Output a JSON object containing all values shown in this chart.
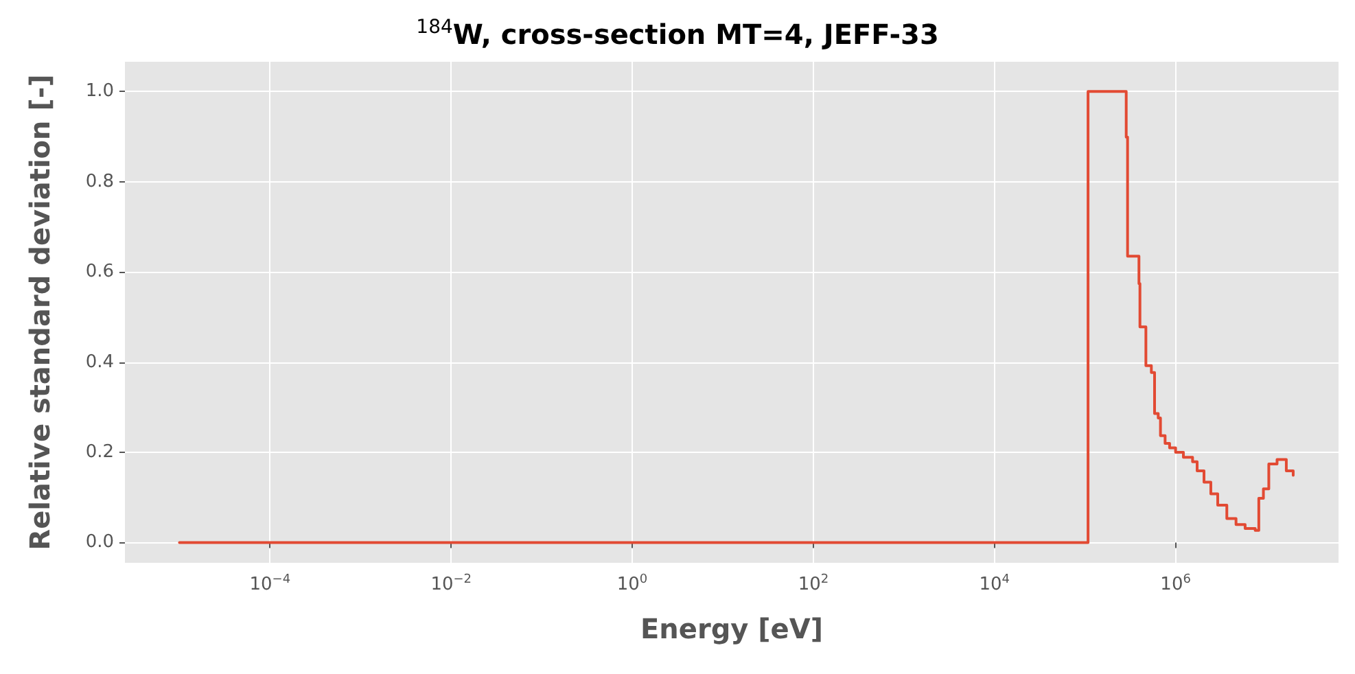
{
  "chart_data": {
    "type": "step",
    "title": "$^{184}$W, cross-section MT=4, JEFF-33",
    "xlabel": "Energy [eV]",
    "ylabel": "Relative standard deviation [-]",
    "log": "x",
    "grid": true,
    "marker": "none",
    "line_style": "solid",
    "xlim": [
      2.5e-06,
      63000000.0
    ],
    "xticks": [
      {
        "value": 0.0001,
        "label": "10$^{−4}$"
      },
      {
        "value": 0.01,
        "label": "10$^{−2}$"
      },
      {
        "value": 1,
        "label": "10$^{0}$"
      },
      {
        "value": 100,
        "label": "10$^{2}$"
      },
      {
        "value": 10000,
        "label": "10$^{4}$"
      },
      {
        "value": 1000000,
        "label": "10$^{6}$"
      }
    ],
    "ylim": [
      -0.045,
      1.066
    ],
    "yticks": [
      {
        "value": 0,
        "label": "0.0"
      },
      {
        "value": 0.2,
        "label": "0.2"
      },
      {
        "value": 0.4,
        "label": "0.4"
      },
      {
        "value": 0.6,
        "label": "0.6"
      },
      {
        "value": 0.8,
        "label": "0.8"
      },
      {
        "value": 1,
        "label": "1.0"
      }
    ],
    "series": [
      {
        "color": "#e24a33",
        "x": [
          1e-05,
          108000,
          285000,
          295000,
          394000,
          404000,
          470000,
          540000,
          586000,
          643000,
          681000,
          766000,
          859000,
          1000000,
          1220000,
          1540000,
          1730000,
          2060000,
          2450000,
          2920000,
          3680000,
          4650000,
          5860000,
          7570000,
          8300000,
          9330000,
          10700000,
          13200000,
          16700000,
          19900000
        ],
        "values": [
          0,
          1.0,
          0.899,
          0.635,
          0.574,
          0.478,
          0.392,
          0.377,
          0.286,
          0.276,
          0.237,
          0.22,
          0.21,
          0.2,
          0.189,
          0.179,
          0.159,
          0.134,
          0.108,
          0.083,
          0.053,
          0.04,
          0.031,
          0.027,
          0.098,
          0.119,
          0.174,
          0.184,
          0.159,
          0.149
        ]
      }
    ]
  }
}
